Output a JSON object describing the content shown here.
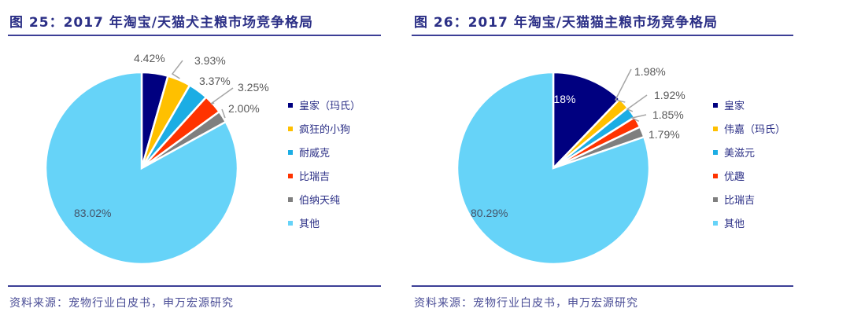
{
  "left": {
    "title": "图 25：2017 年淘宝/天猫犬主粮市场竞争格局",
    "source": "资料来源：宠物行业白皮书，申万宏源研究",
    "labels": [
      "4.42%",
      "3.93%",
      "3.37%",
      "3.25%",
      "2.00%",
      "83.02%"
    ],
    "legend": [
      "皇家（玛氏）",
      "疯狂的小狗",
      "耐威克",
      "比瑞吉",
      "伯纳天纯",
      "其他"
    ]
  },
  "right": {
    "title": "图 26：2017 年淘宝/天猫猫主粮市场竞争格局",
    "source": "资料来源：宠物行业白皮书，申万宏源研究",
    "labels": [
      "12.18%",
      "1.98%",
      "1.92%",
      "1.85%",
      "1.79%",
      "80.29%"
    ],
    "legend": [
      "皇家",
      "伟嘉（玛氏）",
      "美滋元",
      "优趣",
      "比瑞吉",
      "其他"
    ]
  },
  "colors": [
    "#000080",
    "#FFC000",
    "#1CADE4",
    "#FF3300",
    "#7F7F7F",
    "#66D3F8"
  ],
  "chart_data": [
    {
      "type": "pie",
      "title": "图 25：2017 年淘宝/天猫犬主粮市场竞争格局",
      "categories": [
        "皇家（玛氏）",
        "疯狂的小狗",
        "耐威克",
        "比瑞吉",
        "伯纳天纯",
        "其他"
      ],
      "values": [
        4.42,
        3.93,
        3.37,
        3.25,
        2.0,
        83.02
      ],
      "unit": "%",
      "legend_position": "right",
      "start_angle": "12 o'clock, clockwise",
      "source": "资料来源：宠物行业白皮书，申万宏源研究"
    },
    {
      "type": "pie",
      "title": "图 26：2017 年淘宝/天猫猫主粮市场竞争格局",
      "categories": [
        "皇家",
        "伟嘉（玛氏）",
        "美滋元",
        "优趣",
        "比瑞吉",
        "其他"
      ],
      "values": [
        12.18,
        1.98,
        1.92,
        1.85,
        1.79,
        80.29
      ],
      "unit": "%",
      "legend_position": "right",
      "start_angle": "12 o'clock, clockwise",
      "source": "资料来源：宠物行业白皮书，申万宏源研究"
    }
  ]
}
